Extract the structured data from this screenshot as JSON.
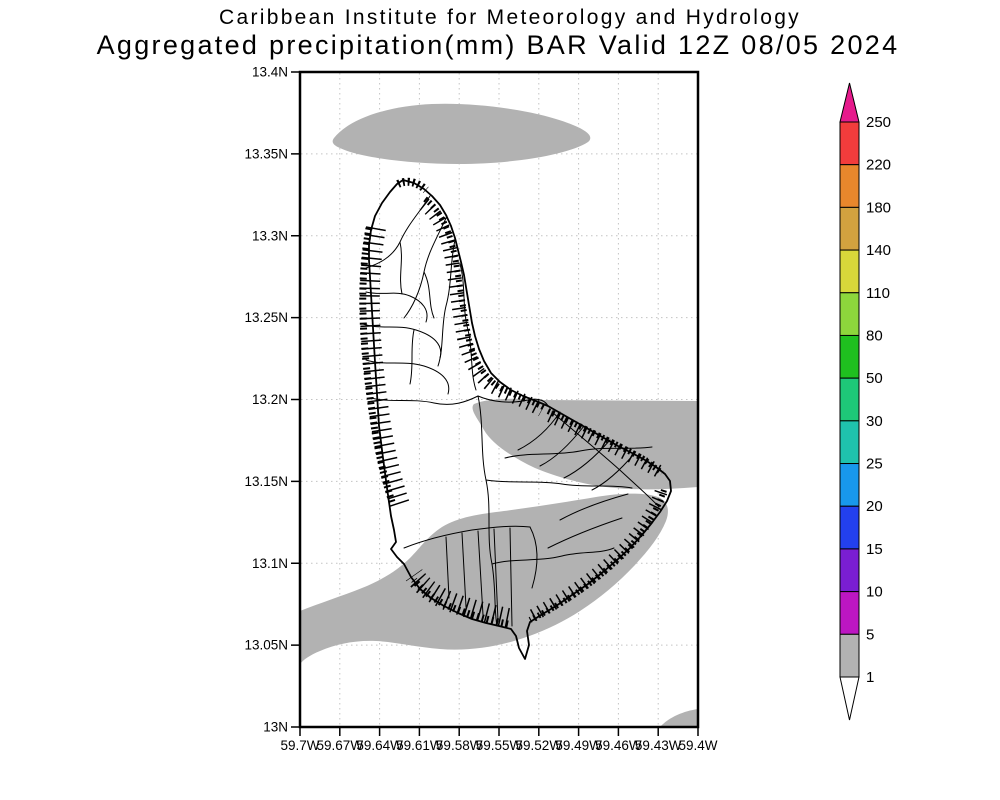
{
  "title": {
    "line1": "Caribbean Institute for Meteorology and Hydrology",
    "line2": "Aggregated precipitation(mm) BAR Valid 12Z 08/05 2024"
  },
  "map": {
    "y_ticks": [
      "13.4N",
      "13.35N",
      "13.3N",
      "13.25N",
      "13.2N",
      "13.15N",
      "13.1N",
      "13.05N",
      "13N"
    ],
    "x_ticks": [
      "59.7W",
      "59.67W",
      "59.64W",
      "59.61W",
      "59.58W",
      "59.55W",
      "59.52W",
      "59.49W",
      "59.46W",
      "59.43W",
      "59.4W"
    ]
  },
  "colorbar": {
    "labels": [
      "250",
      "220",
      "180",
      "140",
      "110",
      "80",
      "50",
      "30",
      "25",
      "20",
      "15",
      "10",
      "5",
      "1"
    ],
    "segment_colors": [
      "#f23c3c",
      "#e8872c",
      "#d2a23f",
      "#d8d73a",
      "#8dd63c",
      "#1fc01f",
      "#1ec878",
      "#1fc2ad",
      "#1898ec",
      "#2340ee",
      "#7a1ed2",
      "#bc16c2",
      "#b2b2b2"
    ],
    "above_max_color": "#e61a8c",
    "below_min_color": "#ffffff"
  },
  "colors": {
    "shading": "#b2b2b2",
    "grid": "#c3c3c3",
    "frame": "#000000",
    "background": "#ffffff"
  }
}
